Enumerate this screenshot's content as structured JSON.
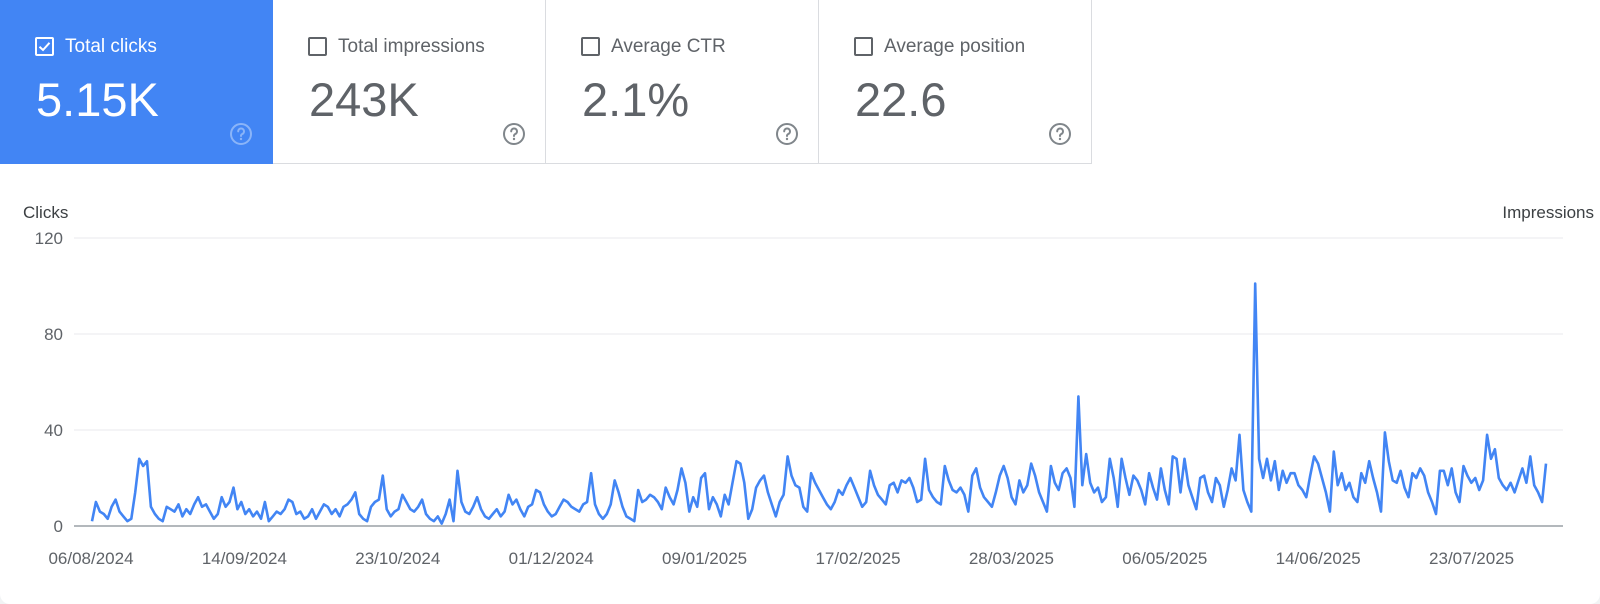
{
  "metrics": [
    {
      "label": "Total clicks",
      "value": "5.15K",
      "checked": true
    },
    {
      "label": "Total impressions",
      "value": "243K",
      "checked": false
    },
    {
      "label": "Average CTR",
      "value": "2.1%",
      "checked": false
    },
    {
      "label": "Average position",
      "value": "22.6",
      "checked": false
    }
  ],
  "icons": {
    "checkbox": "checkbox-icon",
    "help": "help-circle-icon"
  },
  "colors": {
    "accent": "#4285f4",
    "line": "#4285f4"
  },
  "chart_data": {
    "type": "line",
    "ylabel": "Clicks",
    "y2label": "Impressions",
    "ylim": [
      0,
      120
    ],
    "yticks": [
      0,
      40,
      80,
      120
    ],
    "xticks": [
      "06/08/2024",
      "14/09/2024",
      "23/10/2024",
      "01/12/2024",
      "09/01/2025",
      "17/02/2025",
      "28/03/2025",
      "06/05/2025",
      "14/06/2025",
      "23/07/2025"
    ],
    "grid": true,
    "legend": "none",
    "series": [
      {
        "values": [
          2,
          10,
          6,
          5,
          3,
          8,
          11,
          6,
          4,
          2,
          3,
          14,
          28,
          25,
          27,
          8,
          5,
          3,
          2,
          8,
          7,
          6,
          9,
          4,
          7,
          5,
          9,
          12,
          8,
          9,
          6,
          3,
          5,
          12,
          8,
          10,
          16,
          7,
          10,
          5,
          7,
          4,
          6,
          3,
          10,
          2,
          4,
          6,
          5,
          7,
          11,
          10,
          5,
          6,
          3,
          4,
          7,
          3,
          6,
          9,
          8,
          5,
          7,
          4,
          8,
          9,
          11,
          14,
          5,
          3,
          2,
          8,
          10,
          11,
          21,
          7,
          4,
          6,
          7,
          13,
          10,
          7,
          6,
          8,
          11,
          5,
          3,
          2,
          4,
          1,
          5,
          11,
          2,
          23,
          10,
          6,
          5,
          8,
          12,
          7,
          4,
          3,
          5,
          7,
          4,
          6,
          13,
          9,
          11,
          7,
          4,
          8,
          9,
          15,
          14,
          9,
          6,
          4,
          5,
          8,
          11,
          10,
          8,
          7,
          6,
          9,
          10,
          22,
          9,
          5,
          3,
          5,
          9,
          19,
          14,
          8,
          4,
          3,
          2,
          15,
          10,
          11,
          13,
          12,
          10,
          7,
          16,
          12,
          9,
          15,
          24,
          18,
          6,
          12,
          8,
          20,
          22,
          7,
          12,
          9,
          4,
          13,
          9,
          18,
          27,
          26,
          18,
          3,
          7,
          16,
          19,
          21,
          14,
          9,
          4,
          10,
          13,
          29,
          21,
          17,
          16,
          8,
          6,
          22,
          18,
          15,
          12,
          9,
          7,
          10,
          15,
          13,
          17,
          20,
          16,
          12,
          8,
          10,
          23,
          17,
          13,
          11,
          9,
          17,
          18,
          14,
          19,
          18,
          20,
          16,
          10,
          11,
          28,
          15,
          12,
          10,
          9,
          25,
          19,
          15,
          14,
          16,
          13,
          6,
          21,
          24,
          16,
          12,
          10,
          8,
          14,
          21,
          25,
          20,
          12,
          9,
          19,
          14,
          17,
          26,
          21,
          14,
          10,
          6,
          25,
          18,
          15,
          22,
          24,
          20,
          8,
          54,
          17,
          30,
          18,
          14,
          16,
          10,
          12,
          28,
          20,
          8,
          28,
          20,
          13,
          21,
          19,
          15,
          9,
          22,
          16,
          11,
          24,
          15,
          9,
          29,
          28,
          14,
          28,
          17,
          12,
          7,
          20,
          21,
          14,
          10,
          20,
          17,
          8,
          15,
          24,
          19,
          38,
          15,
          10,
          6,
          101,
          28,
          20,
          28,
          19,
          27,
          15,
          23,
          18,
          22,
          22,
          17,
          15,
          12,
          21,
          29,
          26,
          20,
          14,
          6,
          31,
          17,
          22,
          15,
          18,
          12,
          10,
          22,
          18,
          27,
          20,
          14,
          6,
          39,
          27,
          19,
          18,
          23,
          16,
          12,
          22,
          20,
          24,
          21,
          14,
          10,
          5,
          23,
          23,
          17,
          24,
          14,
          10,
          25,
          21,
          18,
          20,
          15,
          19,
          38,
          28,
          32,
          20,
          17,
          15,
          18,
          14,
          19,
          24,
          18,
          29,
          17,
          14,
          10,
          26
        ]
      }
    ]
  }
}
